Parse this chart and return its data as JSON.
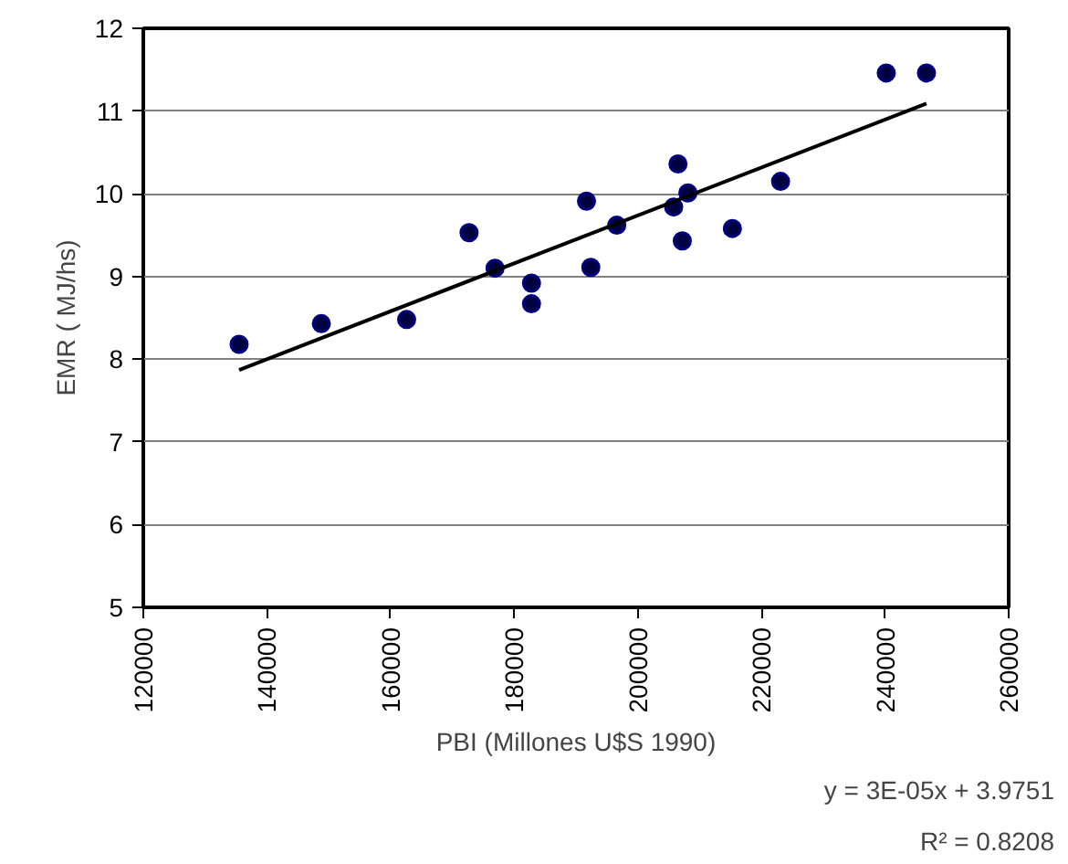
{
  "chart_data": {
    "type": "scatter",
    "xlabel": "PBI (Millones U$S 1990)",
    "ylabel": "EMR ( MJ/hs)",
    "xlim": [
      120000,
      260000
    ],
    "xticks": [
      120000,
      140000,
      160000,
      180000,
      200000,
      220000,
      240000,
      260000
    ],
    "ylim": [
      5,
      12
    ],
    "yticks": [
      5,
      6,
      7,
      8,
      9,
      10,
      11,
      12
    ],
    "grid": "y",
    "marker": "circle",
    "series": [
      {
        "color": "#000040",
        "x": [
          135500,
          148800,
          162600,
          172700,
          176900,
          182800,
          182800,
          191700,
          192400,
          196600,
          205800,
          206500,
          207200,
          208100,
          215300,
          223100,
          240200,
          246700
        ],
        "values": [
          8.18,
          8.43,
          8.48,
          9.53,
          9.1,
          8.92,
          8.67,
          9.91,
          9.11,
          9.62,
          9.84,
          10.36,
          9.43,
          10.01,
          9.58,
          10.15,
          11.46,
          11.46
        ]
      },
      {
        "type": "line",
        "color": "#000000",
        "marker": "none",
        "line_style": "solid",
        "x": [
          135500,
          246700
        ],
        "values": [
          7.87,
          11.09
        ]
      }
    ],
    "annotations": [
      "y = 3E-05x + 3.9751",
      "R² = 0.8208"
    ]
  }
}
